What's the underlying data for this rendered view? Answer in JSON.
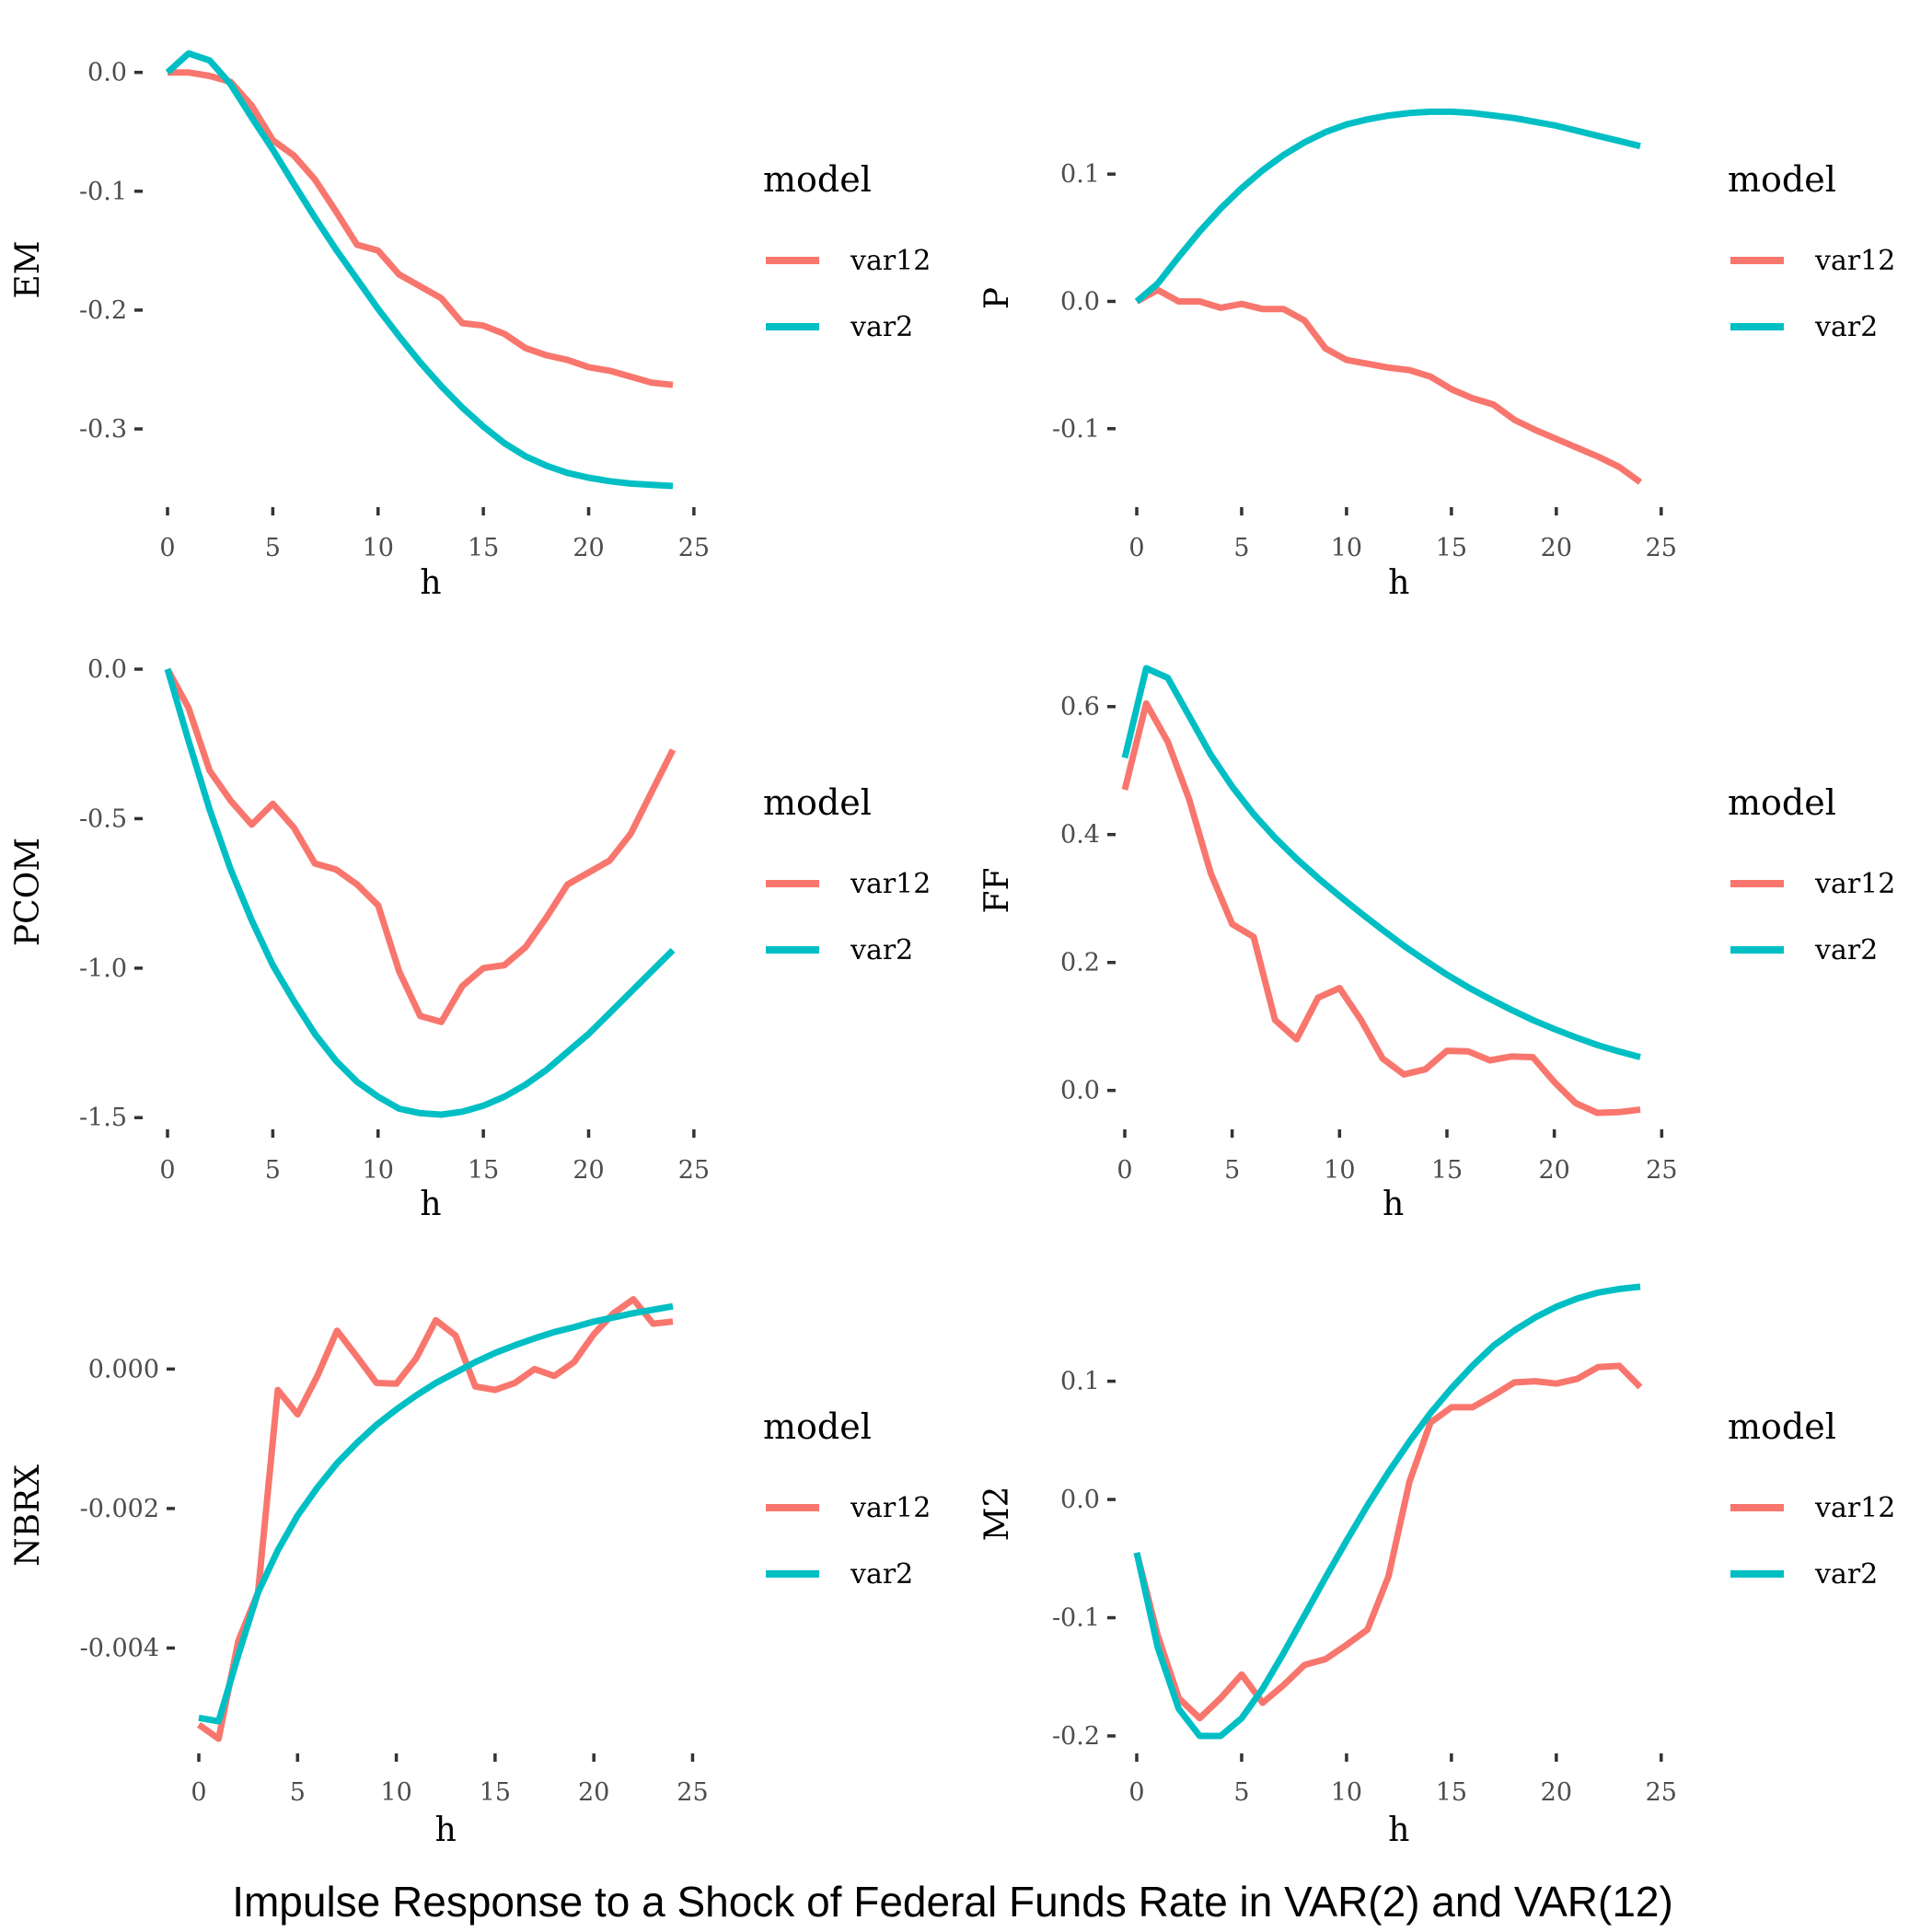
{
  "caption": "Impulse Response to a Shock of Federal Funds Rate in VAR(2) and VAR(12)",
  "colors": {
    "var12": "#F8766D",
    "var2": "#00BFC4"
  },
  "chart_data": [
    {
      "type": "line",
      "xlabel": "h",
      "ylabel": "EM",
      "xlim": [
        0,
        25
      ],
      "ylim": [
        -0.348,
        0.016
      ],
      "xticks": [
        0,
        5,
        10,
        15,
        20,
        25
      ],
      "yticks": [
        0.0,
        -0.1,
        -0.2,
        -0.3
      ],
      "ytick_labels": [
        "0.0",
        "-0.1",
        "-0.2",
        "-0.3"
      ],
      "legend": {
        "title": "model",
        "position": "right",
        "labels": [
          "var12",
          "var2"
        ]
      },
      "series": [
        {
          "name": "var12",
          "x": [
            0,
            1,
            2,
            3,
            4,
            5,
            6,
            7,
            8,
            9,
            10,
            11,
            12,
            13,
            14,
            15,
            16,
            17,
            18,
            19,
            20,
            21,
            22,
            23,
            24
          ],
          "values": [
            0.0,
            0.0,
            -0.003,
            -0.008,
            -0.028,
            -0.057,
            -0.07,
            -0.09,
            -0.117,
            -0.145,
            -0.15,
            -0.17,
            -0.18,
            -0.19,
            -0.211,
            -0.213,
            -0.22,
            -0.232,
            -0.238,
            -0.242,
            -0.248,
            -0.251,
            -0.256,
            -0.261,
            -0.263
          ]
        },
        {
          "name": "var2",
          "x": [
            0,
            1,
            2,
            3,
            4,
            5,
            6,
            7,
            8,
            9,
            10,
            11,
            12,
            13,
            14,
            15,
            16,
            17,
            18,
            19,
            20,
            21,
            22,
            23,
            24
          ],
          "values": [
            0.0,
            0.016,
            0.01,
            -0.01,
            -0.038,
            -0.065,
            -0.094,
            -0.122,
            -0.149,
            -0.174,
            -0.199,
            -0.222,
            -0.244,
            -0.264,
            -0.282,
            -0.298,
            -0.312,
            -0.323,
            -0.331,
            -0.337,
            -0.341,
            -0.344,
            -0.346,
            -0.347,
            -0.348
          ]
        }
      ]
    },
    {
      "type": "line",
      "xlabel": "h",
      "ylabel": "P",
      "xlim": [
        0,
        25
      ],
      "ylim": [
        -0.145,
        0.15
      ],
      "xticks": [
        0,
        5,
        10,
        15,
        20,
        25
      ],
      "yticks": [
        0.1,
        0.0,
        -0.1
      ],
      "ytick_labels": [
        "0.1",
        "0.0",
        "-0.1"
      ],
      "legend": {
        "title": "model",
        "position": "right",
        "labels": [
          "var12",
          "var2"
        ]
      },
      "series": [
        {
          "name": "var12",
          "x": [
            0,
            1,
            2,
            3,
            4,
            5,
            6,
            7,
            8,
            9,
            10,
            11,
            12,
            13,
            14,
            15,
            16,
            17,
            18,
            19,
            20,
            21,
            22,
            23,
            24
          ],
          "values": [
            0.0,
            0.009,
            0.0,
            0.0,
            -0.005,
            -0.002,
            -0.006,
            -0.006,
            -0.015,
            -0.037,
            -0.046,
            -0.049,
            -0.052,
            -0.054,
            -0.059,
            -0.069,
            -0.076,
            -0.081,
            -0.093,
            -0.101,
            -0.108,
            -0.115,
            -0.122,
            -0.13,
            -0.142
          ]
        },
        {
          "name": "var2",
          "x": [
            0,
            1,
            2,
            3,
            4,
            5,
            6,
            7,
            8,
            9,
            10,
            11,
            12,
            13,
            14,
            15,
            16,
            17,
            18,
            19,
            20,
            21,
            22,
            23,
            24
          ],
          "values": [
            0.0,
            0.014,
            0.035,
            0.055,
            0.073,
            0.089,
            0.103,
            0.115,
            0.125,
            0.133,
            0.139,
            0.143,
            0.146,
            0.148,
            0.149,
            0.149,
            0.148,
            0.146,
            0.144,
            0.141,
            0.138,
            0.134,
            0.13,
            0.126,
            0.122
          ]
        }
      ]
    },
    {
      "type": "line",
      "xlabel": "h",
      "ylabel": "PCOM",
      "xlim": [
        0,
        25
      ],
      "ylim": [
        -1.49,
        0.0
      ],
      "xticks": [
        0,
        5,
        10,
        15,
        20,
        25
      ],
      "yticks": [
        0.0,
        -0.5,
        -1.0,
        -1.5
      ],
      "ytick_labels": [
        "0.0",
        "-0.5",
        "-1.0",
        "-1.5"
      ],
      "legend": {
        "title": "model",
        "position": "right",
        "labels": [
          "var12",
          "var2"
        ]
      },
      "series": [
        {
          "name": "var12",
          "x": [
            0,
            1,
            2,
            3,
            4,
            5,
            6,
            7,
            8,
            9,
            10,
            11,
            12,
            13,
            14,
            15,
            16,
            17,
            18,
            19,
            20,
            21,
            22,
            23,
            24
          ],
          "values": [
            0.0,
            -0.13,
            -0.34,
            -0.44,
            -0.52,
            -0.45,
            -0.53,
            -0.65,
            -0.67,
            -0.72,
            -0.79,
            -1.01,
            -1.16,
            -1.18,
            -1.06,
            -1.0,
            -0.99,
            -0.93,
            -0.83,
            -0.72,
            -0.68,
            -0.64,
            -0.55,
            -0.41,
            -0.27
          ]
        },
        {
          "name": "var2",
          "x": [
            0,
            1,
            2,
            3,
            4,
            5,
            6,
            7,
            8,
            9,
            10,
            11,
            12,
            13,
            14,
            15,
            16,
            17,
            18,
            19,
            20,
            21,
            22,
            23,
            24
          ],
          "values": [
            0.0,
            -0.24,
            -0.47,
            -0.67,
            -0.84,
            -0.99,
            -1.11,
            -1.22,
            -1.31,
            -1.38,
            -1.43,
            -1.47,
            -1.485,
            -1.49,
            -1.48,
            -1.46,
            -1.43,
            -1.39,
            -1.34,
            -1.28,
            -1.22,
            -1.15,
            -1.08,
            -1.01,
            -0.94
          ]
        }
      ]
    },
    {
      "type": "line",
      "xlabel": "h",
      "ylabel": "FF",
      "xlim": [
        0,
        25
      ],
      "ylim": [
        -0.035,
        0.66
      ],
      "xticks": [
        0,
        5,
        10,
        15,
        20,
        25
      ],
      "yticks": [
        0.6,
        0.4,
        0.2,
        0.0
      ],
      "ytick_labels": [
        "0.6",
        "0.4",
        "0.2",
        "0.0"
      ],
      "legend": {
        "title": "model",
        "position": "right",
        "labels": [
          "var12",
          "var2"
        ]
      },
      "series": [
        {
          "name": "var12",
          "x": [
            0,
            1,
            2,
            3,
            4,
            5,
            6,
            7,
            8,
            9,
            10,
            11,
            12,
            13,
            14,
            15,
            16,
            17,
            18,
            19,
            20,
            21,
            22,
            23,
            24
          ],
          "values": [
            0.47,
            0.605,
            0.545,
            0.455,
            0.34,
            0.26,
            0.24,
            0.11,
            0.08,
            0.145,
            0.16,
            0.11,
            0.05,
            0.025,
            0.033,
            0.062,
            0.061,
            0.047,
            0.053,
            0.052,
            0.013,
            -0.02,
            -0.035,
            -0.034,
            -0.03
          ]
        },
        {
          "name": "var2",
          "x": [
            0,
            1,
            2,
            3,
            4,
            5,
            6,
            7,
            8,
            9,
            10,
            11,
            12,
            13,
            14,
            15,
            16,
            17,
            18,
            19,
            20,
            21,
            22,
            23,
            24
          ],
          "values": [
            0.52,
            0.66,
            0.645,
            0.585,
            0.525,
            0.475,
            0.432,
            0.395,
            0.362,
            0.332,
            0.304,
            0.277,
            0.251,
            0.226,
            0.203,
            0.181,
            0.161,
            0.143,
            0.126,
            0.11,
            0.096,
            0.083,
            0.071,
            0.061,
            0.052
          ]
        }
      ]
    },
    {
      "type": "line",
      "xlabel": "h",
      "ylabel": "NBRX",
      "xlim": [
        0,
        25
      ],
      "ylim": [
        -0.0053,
        0.0011
      ],
      "xticks": [
        0,
        5,
        10,
        15,
        20,
        25
      ],
      "yticks": [
        0.0,
        -0.002,
        -0.004
      ],
      "ytick_labels": [
        "0.000",
        "-0.002",
        "-0.004"
      ],
      "legend": {
        "title": "model",
        "position": "right",
        "labels": [
          "var12",
          "var2"
        ]
      },
      "series": [
        {
          "name": "var12",
          "x": [
            0,
            1,
            2,
            3,
            4,
            5,
            6,
            7,
            8,
            9,
            10,
            11,
            12,
            13,
            14,
            15,
            16,
            17,
            18,
            19,
            20,
            21,
            22,
            23,
            24
          ],
          "values": [
            -0.0051,
            -0.0053,
            -0.0039,
            -0.0032,
            -0.0003,
            -0.00065,
            -0.0001,
            0.00055,
            0.00018,
            -0.0002,
            -0.00021,
            0.00015,
            0.0007,
            0.00048,
            -0.00025,
            -0.0003,
            -0.0002,
            0.0,
            -0.0001,
            0.0001,
            0.0005,
            0.0008,
            0.001,
            0.00065,
            0.00068
          ]
        },
        {
          "name": "var2",
          "x": [
            0,
            1,
            2,
            3,
            4,
            5,
            6,
            7,
            8,
            9,
            10,
            11,
            12,
            13,
            14,
            15,
            16,
            17,
            18,
            19,
            20,
            21,
            22,
            23,
            24
          ],
          "values": [
            -0.005,
            -0.00505,
            -0.0041,
            -0.0032,
            -0.0026,
            -0.0021,
            -0.0017,
            -0.00135,
            -0.00106,
            -0.0008,
            -0.00058,
            -0.00038,
            -0.0002,
            -5e-05,
            0.0001,
            0.00023,
            0.00034,
            0.00044,
            0.00053,
            0.0006,
            0.00068,
            0.00074,
            0.0008,
            0.00085,
            0.0009
          ]
        }
      ]
    },
    {
      "type": "line",
      "xlabel": "h",
      "ylabel": "M2",
      "xlim": [
        0,
        25
      ],
      "ylim": [
        -0.2,
        0.176
      ],
      "xticks": [
        0,
        5,
        10,
        15,
        20,
        25
      ],
      "yticks": [
        0.1,
        0.0,
        -0.1,
        -0.2
      ],
      "ytick_labels": [
        "0.1",
        "0.0",
        "-0.1",
        "-0.2"
      ],
      "legend": {
        "title": "model",
        "position": "right",
        "labels": [
          "var12",
          "var2"
        ]
      },
      "series": [
        {
          "name": "var12",
          "x": [
            0,
            1,
            2,
            3,
            4,
            5,
            6,
            7,
            8,
            9,
            10,
            11,
            12,
            13,
            14,
            15,
            16,
            17,
            18,
            19,
            20,
            21,
            22,
            23,
            24
          ],
          "values": [
            -0.045,
            -0.115,
            -0.168,
            -0.185,
            -0.168,
            -0.148,
            -0.172,
            -0.157,
            -0.14,
            -0.135,
            -0.123,
            -0.11,
            -0.065,
            0.015,
            0.065,
            0.078,
            0.078,
            0.088,
            0.099,
            0.1,
            0.098,
            0.102,
            0.112,
            0.113,
            0.095
          ]
        },
        {
          "name": "var2",
          "x": [
            0,
            1,
            2,
            3,
            4,
            5,
            6,
            7,
            8,
            9,
            10,
            11,
            12,
            13,
            14,
            15,
            16,
            17,
            18,
            19,
            20,
            21,
            22,
            23,
            24
          ],
          "values": [
            -0.045,
            -0.125,
            -0.177,
            -0.2,
            -0.2,
            -0.185,
            -0.16,
            -0.13,
            -0.098,
            -0.066,
            -0.035,
            -0.005,
            0.023,
            0.049,
            0.073,
            0.094,
            0.113,
            0.13,
            0.143,
            0.154,
            0.163,
            0.17,
            0.175,
            0.178,
            0.18
          ]
        }
      ]
    }
  ]
}
